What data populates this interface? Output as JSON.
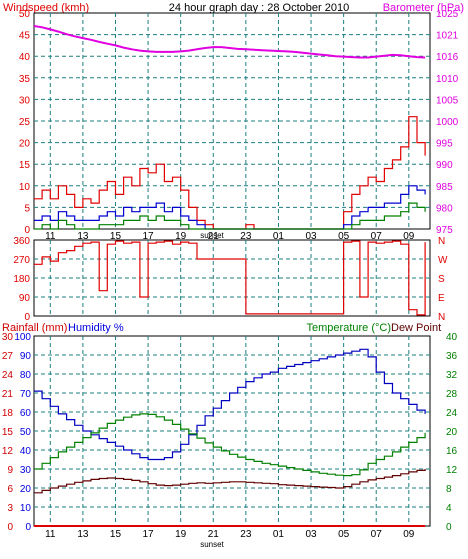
{
  "header": {
    "left_title": "Windspeed (kmh)",
    "center_title": "24 hour graph day : 28 October 2010",
    "right_title": "Barometer (hPa)",
    "rain_label": "Rainfall (mm)",
    "humidity_label": "Humidity %",
    "temp_label": "Temperature (°C)",
    "dew_label": "Dew Point",
    "sunset_label": "sunset"
  },
  "colors": {
    "wind_axis": "#e00000",
    "baro": "#e000e0",
    "gust": "#e00000",
    "wind_avg": "#0000d0",
    "wind_min": "#008000",
    "direction": "#e00000",
    "rain_axis": "#d00000",
    "humidity_axis": "#0000e0",
    "humidity": "#0000c0",
    "temperature": "#008000",
    "dewpoint": "#600000",
    "rain": "#e00000",
    "grid": "#1e7f7f"
  },
  "x_ticks": [
    "11",
    "13",
    "15",
    "17",
    "19",
    "21",
    "23",
    "01",
    "03",
    "05",
    "07",
    "09"
  ],
  "chart_data": [
    {
      "type": "line",
      "panel": "wind_barometer",
      "x": [
        10.0,
        10.5,
        11.0,
        11.5,
        12.0,
        12.5,
        13.0,
        13.5,
        14.0,
        14.5,
        15.0,
        15.5,
        16.0,
        16.5,
        17.0,
        17.5,
        18.0,
        18.5,
        19.0,
        19.5,
        20.0,
        20.5,
        21.0,
        21.5,
        22.0,
        22.5,
        23.0,
        23.5,
        24.0,
        24.5,
        25.0,
        25.5,
        26.0,
        26.5,
        27.0,
        27.5,
        28.0,
        28.5,
        29.0,
        29.5,
        30.0,
        30.5,
        31.0,
        31.5,
        32.0,
        32.5,
        33.0,
        33.5,
        34.0
      ],
      "series": [
        {
          "name": "Barometer (hPa)",
          "axis": "right",
          "values": [
            1022.0,
            1021.7,
            1021.2,
            1020.7,
            1020.1,
            1019.6,
            1019.2,
            1018.8,
            1018.3,
            1017.9,
            1017.5,
            1017.0,
            1016.6,
            1016.3,
            1016.1,
            1016.0,
            1016.0,
            1016.0,
            1016.1,
            1016.3,
            1016.6,
            1016.9,
            1017.1,
            1017.1,
            1016.9,
            1016.7,
            1016.6,
            1016.5,
            1016.4,
            1016.3,
            1016.2,
            1016.1,
            1016.0,
            1015.8,
            1015.6,
            1015.4,
            1015.2,
            1015.0,
            1014.9,
            1014.8,
            1014.7,
            1014.7,
            1014.9,
            1015.1,
            1015.3,
            1015.2,
            1015.0,
            1014.8,
            1014.7
          ]
        },
        {
          "name": "Wind gust",
          "axis": "left",
          "values": [
            7,
            9,
            7,
            10,
            8,
            5,
            7,
            6,
            9,
            11,
            8,
            12,
            10,
            14,
            13,
            15,
            11,
            12,
            9,
            5,
            2,
            1,
            0,
            0,
            0,
            0,
            1,
            0,
            0,
            0,
            0,
            0,
            0,
            0,
            0,
            0,
            0,
            0,
            4,
            8,
            10,
            12,
            11,
            14,
            16,
            19,
            26,
            20,
            17
          ]
        },
        {
          "name": "Wind average",
          "axis": "left",
          "values": [
            2,
            3,
            2,
            4,
            3,
            2,
            2,
            2,
            3,
            4,
            3,
            5,
            4,
            5,
            5,
            6,
            4,
            5,
            3,
            2,
            1,
            0,
            0,
            0,
            0,
            0,
            0,
            0,
            0,
            0,
            0,
            0,
            0,
            0,
            0,
            0,
            0,
            0,
            1,
            3,
            4,
            5,
            5,
            6,
            6,
            8,
            10,
            9,
            8
          ]
        },
        {
          "name": "Wind lull",
          "axis": "left",
          "values": [
            0,
            1,
            0,
            2,
            1,
            0,
            0,
            0,
            1,
            1,
            1,
            2,
            2,
            3,
            2,
            3,
            2,
            2,
            1,
            0,
            0,
            0,
            0,
            0,
            0,
            0,
            0,
            0,
            0,
            0,
            0,
            0,
            0,
            0,
            0,
            0,
            0,
            0,
            0,
            1,
            2,
            2,
            2,
            3,
            3,
            4,
            6,
            5,
            4
          ]
        }
      ],
      "ylim_left": [
        0,
        50
      ],
      "ylim_right": [
        975,
        1025
      ],
      "y_ticks_left": [
        "0",
        "5",
        "10",
        "15",
        "20",
        "25",
        "30",
        "35",
        "40",
        "45",
        "50"
      ],
      "y_ticks_right": [
        "975",
        "980",
        "985",
        "990",
        "995",
        "1000",
        "1005",
        "1010",
        "1016",
        "1021",
        "1025"
      ]
    },
    {
      "type": "line",
      "panel": "wind_direction",
      "x": [
        10.0,
        10.5,
        11.0,
        11.5,
        12.0,
        12.5,
        13.0,
        13.5,
        14.0,
        14.5,
        15.0,
        15.5,
        16.0,
        16.5,
        17.0,
        17.5,
        18.0,
        18.5,
        19.0,
        19.5,
        20.0,
        20.5,
        21.0,
        21.5,
        22.0,
        22.5,
        23.0,
        23.5,
        24.0,
        24.5,
        25.0,
        25.5,
        26.0,
        26.5,
        27.0,
        27.5,
        28.0,
        28.5,
        29.0,
        29.5,
        30.0,
        30.5,
        31.0,
        31.5,
        32.0,
        32.5,
        33.0,
        33.5,
        34.0
      ],
      "series": [
        {
          "name": "Wind direction",
          "values": [
            245,
            280,
            260,
            300,
            310,
            330,
            345,
            350,
            120,
            340,
            355,
            345,
            350,
            90,
            345,
            350,
            355,
            340,
            350,
            345,
            270,
            270,
            270,
            270,
            270,
            270,
            10,
            10,
            10,
            10,
            10,
            10,
            10,
            10,
            10,
            10,
            10,
            10,
            350,
            355,
            90,
            350,
            345,
            350,
            355,
            340,
            30,
            5,
            350
          ]
        }
      ],
      "ylim": [
        0,
        360
      ],
      "y_ticks_left": [
        "0",
        "90",
        "180",
        "270",
        "360"
      ],
      "y_ticks_right": [
        "N",
        "E",
        "S",
        "W",
        "N"
      ]
    },
    {
      "type": "line",
      "panel": "temp_humidity_rain",
      "x": [
        10.0,
        10.5,
        11.0,
        11.5,
        12.0,
        12.5,
        13.0,
        13.5,
        14.0,
        14.5,
        15.0,
        15.5,
        16.0,
        16.5,
        17.0,
        17.5,
        18.0,
        18.5,
        19.0,
        19.5,
        20.0,
        20.5,
        21.0,
        21.5,
        22.0,
        22.5,
        23.0,
        23.5,
        24.0,
        24.5,
        25.0,
        25.5,
        26.0,
        26.5,
        27.0,
        27.5,
        28.0,
        28.5,
        29.0,
        29.5,
        30.0,
        30.5,
        31.0,
        31.5,
        32.0,
        32.5,
        33.0,
        33.5,
        34.0
      ],
      "series": [
        {
          "name": "Humidity %",
          "axis": "left_humidity",
          "values": [
            71,
            67,
            63,
            59,
            56,
            53,
            50,
            48,
            46,
            44,
            42,
            40,
            38,
            36,
            35,
            35,
            36,
            39,
            43,
            48,
            53,
            58,
            62,
            66,
            70,
            73,
            76,
            78,
            80,
            81,
            83,
            84,
            85,
            86,
            87,
            88,
            89,
            90,
            91,
            92,
            93,
            89,
            81,
            75,
            70,
            67,
            64,
            61,
            59
          ]
        },
        {
          "name": "Temperature (°C)",
          "axis": "right",
          "values": [
            12.0,
            13.2,
            14.4,
            15.6,
            16.6,
            17.6,
            18.6,
            19.6,
            20.6,
            21.6,
            22.3,
            22.9,
            23.4,
            23.6,
            23.5,
            23.0,
            22.3,
            21.4,
            20.4,
            19.4,
            18.5,
            17.5,
            16.6,
            15.8,
            15.1,
            14.5,
            14.0,
            13.6,
            13.2,
            12.9,
            12.6,
            12.3,
            12.0,
            11.7,
            11.4,
            11.1,
            10.9,
            10.7,
            10.6,
            10.8,
            11.8,
            13.2,
            14.0,
            14.7,
            15.6,
            16.6,
            17.6,
            18.6,
            19.6
          ]
        },
        {
          "name": "Dew Point",
          "axis": "right",
          "values": [
            7.0,
            7.5,
            8.0,
            8.4,
            8.8,
            9.2,
            9.5,
            9.8,
            10.0,
            10.1,
            10.0,
            9.8,
            9.6,
            9.3,
            8.9,
            8.6,
            8.5,
            8.6,
            8.8,
            9.0,
            9.1,
            9.0,
            9.1,
            9.2,
            9.3,
            9.3,
            9.2,
            9.1,
            9.0,
            8.9,
            8.7,
            8.6,
            8.5,
            8.4,
            8.3,
            8.2,
            8.1,
            8.0,
            8.3,
            8.8,
            9.3,
            9.7,
            10.0,
            10.3,
            10.6,
            11.0,
            11.4,
            11.7,
            12.0
          ]
        },
        {
          "name": "Rainfall (mm)",
          "axis": "left_rain",
          "values": [
            0,
            0,
            0,
            0,
            0,
            0,
            0,
            0,
            0,
            0,
            0,
            0,
            0,
            0,
            0,
            0,
            0,
            0,
            0,
            0,
            0,
            0,
            0,
            0,
            0,
            0,
            0,
            0,
            0,
            0,
            0,
            0,
            0,
            0,
            0,
            0,
            0,
            0,
            0,
            0,
            0,
            0,
            0,
            0,
            0,
            0,
            0,
            0,
            0
          ]
        }
      ],
      "ylim_rain": [
        0,
        30
      ],
      "ylim_humidity": [
        0,
        100
      ],
      "ylim_temp": [
        0,
        40
      ],
      "y_ticks_rain": [
        "0",
        "3",
        "6",
        "9",
        "12",
        "15",
        "18",
        "21",
        "24",
        "27",
        "30"
      ],
      "y_ticks_humidity": [
        "0",
        "10",
        "20",
        "30",
        "40",
        "50",
        "60",
        "70",
        "80",
        "90",
        "100"
      ],
      "y_ticks_temp": [
        "0",
        "4",
        "8",
        "12",
        "16",
        "20",
        "24",
        "28",
        "32",
        "36",
        "40"
      ]
    }
  ]
}
